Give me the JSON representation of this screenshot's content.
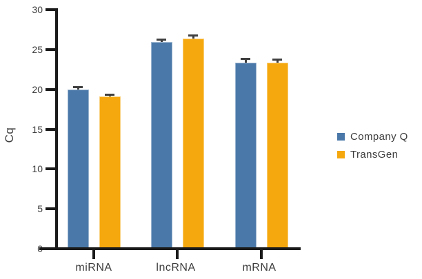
{
  "chart_data": {
    "type": "bar",
    "title": "",
    "ylabel": "Cq",
    "xlabel": "",
    "categories": [
      "miRNA",
      "lncRNA",
      "mRNA"
    ],
    "series": [
      {
        "name": "Company Q",
        "color": "#4A78A9",
        "values": [
          20.0,
          25.9,
          23.3
        ],
        "errors": [
          0.2,
          0.3,
          0.5
        ]
      },
      {
        "name": "TransGen",
        "color": "#F5A80D",
        "values": [
          19.1,
          26.4,
          23.3
        ],
        "errors": [
          0.2,
          0.35,
          0.4
        ]
      }
    ],
    "ylim": [
      0,
      30
    ],
    "yticks": [
      0,
      5,
      10,
      15,
      20,
      25,
      30
    ],
    "error_bars": "upper only, capped",
    "legend_position": "right-center",
    "grid": false,
    "axis_color": "#1a1a1a",
    "text_color": "#3d3d3d",
    "error_bar_color": "#3f3f3f",
    "background": "#ffffff"
  }
}
